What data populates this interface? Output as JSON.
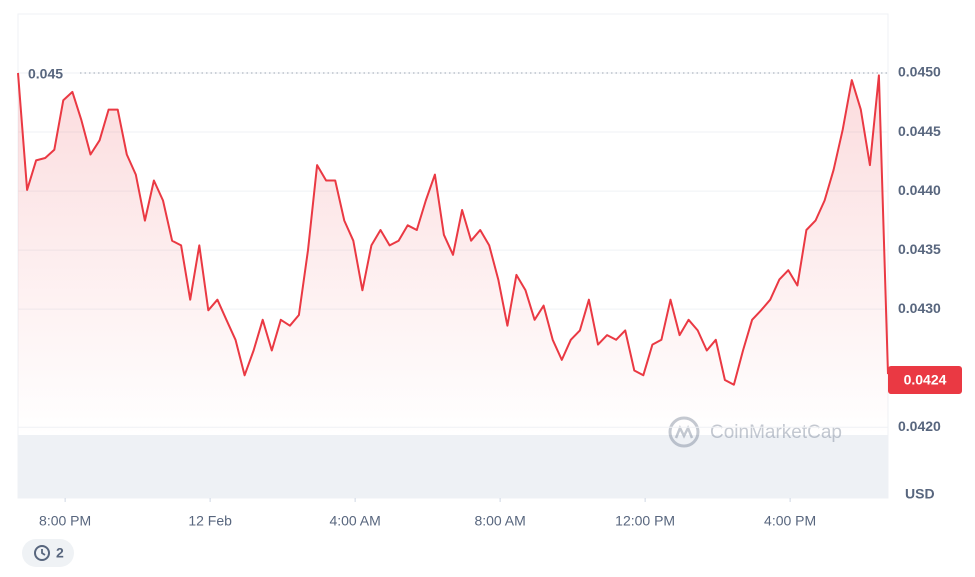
{
  "chart_data": {
    "type": "line",
    "color": "#ea3943",
    "above_color": "#16c784",
    "values": [
      0.045,
      0.04401,
      0.04426,
      0.04428,
      0.04435,
      0.04477,
      0.04484,
      0.0446,
      0.04431,
      0.04443,
      0.04469,
      0.04469,
      0.04431,
      0.04414,
      0.04375,
      0.04409,
      0.04392,
      0.04358,
      0.04354,
      0.04308,
      0.04354,
      0.04299,
      0.04308,
      0.04291,
      0.04274,
      0.04244,
      0.04265,
      0.04291,
      0.04265,
      0.04291,
      0.04286,
      0.04295,
      0.0435,
      0.04422,
      0.04409,
      0.04409,
      0.04375,
      0.04358,
      0.04316,
      0.04354,
      0.04367,
      0.04354,
      0.04358,
      0.04371,
      0.04367,
      0.04392,
      0.04414,
      0.04363,
      0.04346,
      0.04384,
      0.04358,
      0.04367,
      0.04354,
      0.04325,
      0.04286,
      0.04329,
      0.04316,
      0.04291,
      0.04303,
      0.04274,
      0.04257,
      0.04274,
      0.04282,
      0.04308,
      0.0427,
      0.04278,
      0.04274,
      0.04282,
      0.04248,
      0.04244,
      0.0427,
      0.04274,
      0.04308,
      0.04278,
      0.04291,
      0.04282,
      0.04265,
      0.04274,
      0.0424,
      0.04236,
      0.04265,
      0.04291,
      0.04299,
      0.04308,
      0.04325,
      0.04333,
      0.0432,
      0.04367,
      0.04375,
      0.04392,
      0.04418,
      0.04452,
      0.04494,
      0.04469,
      0.04422,
      0.04498,
      0.04245
    ],
    "xlim": [
      0,
      96
    ],
    "xticks": [
      {
        "value": 5.2,
        "label": "8:00 PM"
      },
      {
        "value": 21.2,
        "label": "12 Feb"
      },
      {
        "value": 37.2,
        "label": "4:00 AM"
      },
      {
        "value": 53.2,
        "label": "8:00 AM"
      },
      {
        "value": 69.2,
        "label": "12:00 PM"
      },
      {
        "value": 85.2,
        "label": "4:00 PM"
      }
    ],
    "ylim": [
      0.0419,
      0.0455
    ],
    "yticks": [
      {
        "value": 0.045,
        "label": "0.0450"
      },
      0.0445,
      {
        "value": 0.044,
        "label": "0.0440"
      },
      0.0435,
      {
        "value": 0.043,
        "label": "0.0430"
      },
      {
        "value": 0.042,
        "label": "0.0420"
      }
    ],
    "grid": true,
    "reference_line": 0.045,
    "last_price": 0.0424,
    "unit": "USD",
    "watermark": "CoinMarketCap",
    "history_count": 2
  }
}
